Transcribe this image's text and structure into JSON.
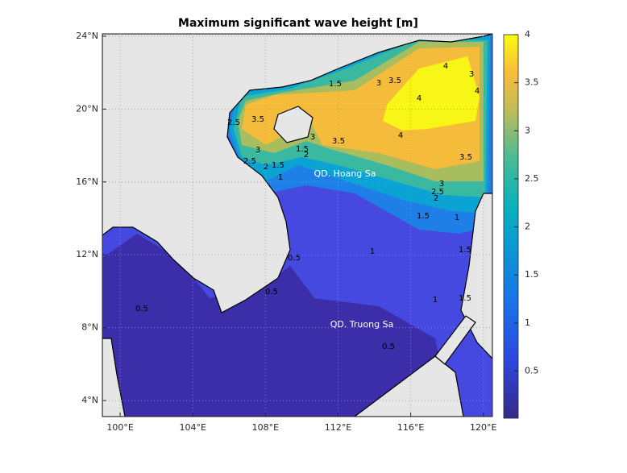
{
  "title": "Maximum significant wave height [m]",
  "map": {
    "xlim": [
      99.02,
      120.5
    ],
    "ylim": [
      3.12,
      24.13
    ],
    "xticks": [
      {
        "value": 100,
        "label": "100°E"
      },
      {
        "value": 104,
        "label": "104°E"
      },
      {
        "value": 108,
        "label": "108°E"
      },
      {
        "value": 112,
        "label": "112°E"
      },
      {
        "value": 116,
        "label": "116°E"
      },
      {
        "value": 120,
        "label": "120°E"
      }
    ],
    "yticks": [
      {
        "value": 4,
        "label": "4°N"
      },
      {
        "value": 8,
        "label": "8°N"
      },
      {
        "value": 12,
        "label": "12°N"
      },
      {
        "value": 16,
        "label": "16°N"
      },
      {
        "value": 20,
        "label": "20°N"
      },
      {
        "value": 24,
        "label": "24°N"
      }
    ],
    "grid": true
  },
  "colorbar": {
    "lim": [
      0.01,
      4
    ],
    "ticks": [
      0.5,
      1,
      1.5,
      2,
      2.5,
      3,
      3.5,
      4
    ]
  },
  "places": [
    "QD. Hoang Sa",
    "QD. Truong Sa"
  ],
  "contour_labels": [
    2.5,
    3.5,
    3,
    2.5,
    2,
    1.5,
    1,
    1.5,
    2,
    3,
    3.5,
    3,
    3.5,
    4,
    4,
    4,
    3.5,
    4,
    3,
    3,
    2.5,
    2,
    1.5,
    1,
    1.5,
    1,
    0.5,
    0.5,
    0.5,
    0.5,
    1,
    1.5,
    1.5
  ]
}
